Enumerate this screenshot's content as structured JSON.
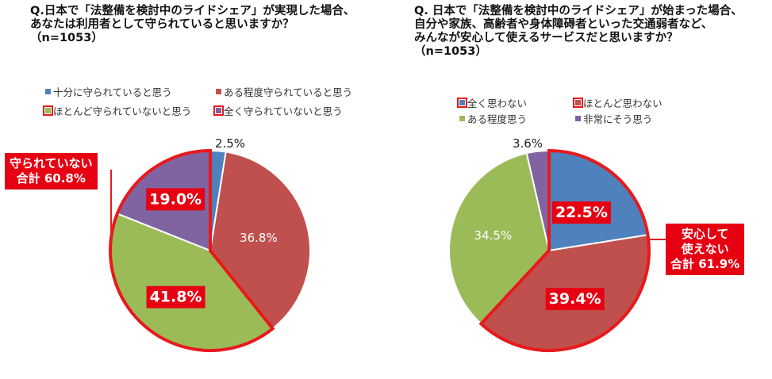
{
  "chart_data": [
    {
      "type": "pie",
      "title_lines": [
        "Q.日本で「法整備を検討中のライドシェア」が実現した場合、",
        "あなたは利用者として守られていると思いますか？",
        "（n=1053）"
      ],
      "categories": [
        "十分に守られていると思う",
        "ある程度守られていると思う",
        "ほとんど守られていないと思う",
        "全く守られていないと思う"
      ],
      "values": [
        2.5,
        36.8,
        41.8,
        19.0
      ],
      "labels": [
        "2.5%",
        "36.8%",
        "41.8%",
        "19.0%"
      ],
      "colors": [
        "#4f81bd",
        "#c0504d",
        "#9bbb59",
        "#8064a2"
      ],
      "legend_position": "top",
      "callout_lines": [
        "守られていない",
        "合計 60.8%"
      ]
    },
    {
      "type": "pie",
      "title_lines": [
        "Q. 日本で「法整備を検討中のライドシェア」が始まった場合、",
        "自分や家族、高齢者や身体障碍者といった交通弱者など、",
        "みんなが安心して使えるサービスだと思いますか？",
        "（n=1053）"
      ],
      "categories": [
        "全く思わない",
        "ほとんど思わない",
        "ある程度思う",
        "非常にそう思う"
      ],
      "values": [
        22.5,
        39.4,
        34.5,
        3.6
      ],
      "labels": [
        "22.5%",
        "39.4%",
        "34.5%",
        "3.6%"
      ],
      "colors": [
        "#4f81bd",
        "#c0504d",
        "#9bbb59",
        "#8064a2"
      ],
      "legend_position": "top",
      "callout_lines": [
        "安心して",
        "使えない",
        "合計 61.9%"
      ]
    }
  ]
}
